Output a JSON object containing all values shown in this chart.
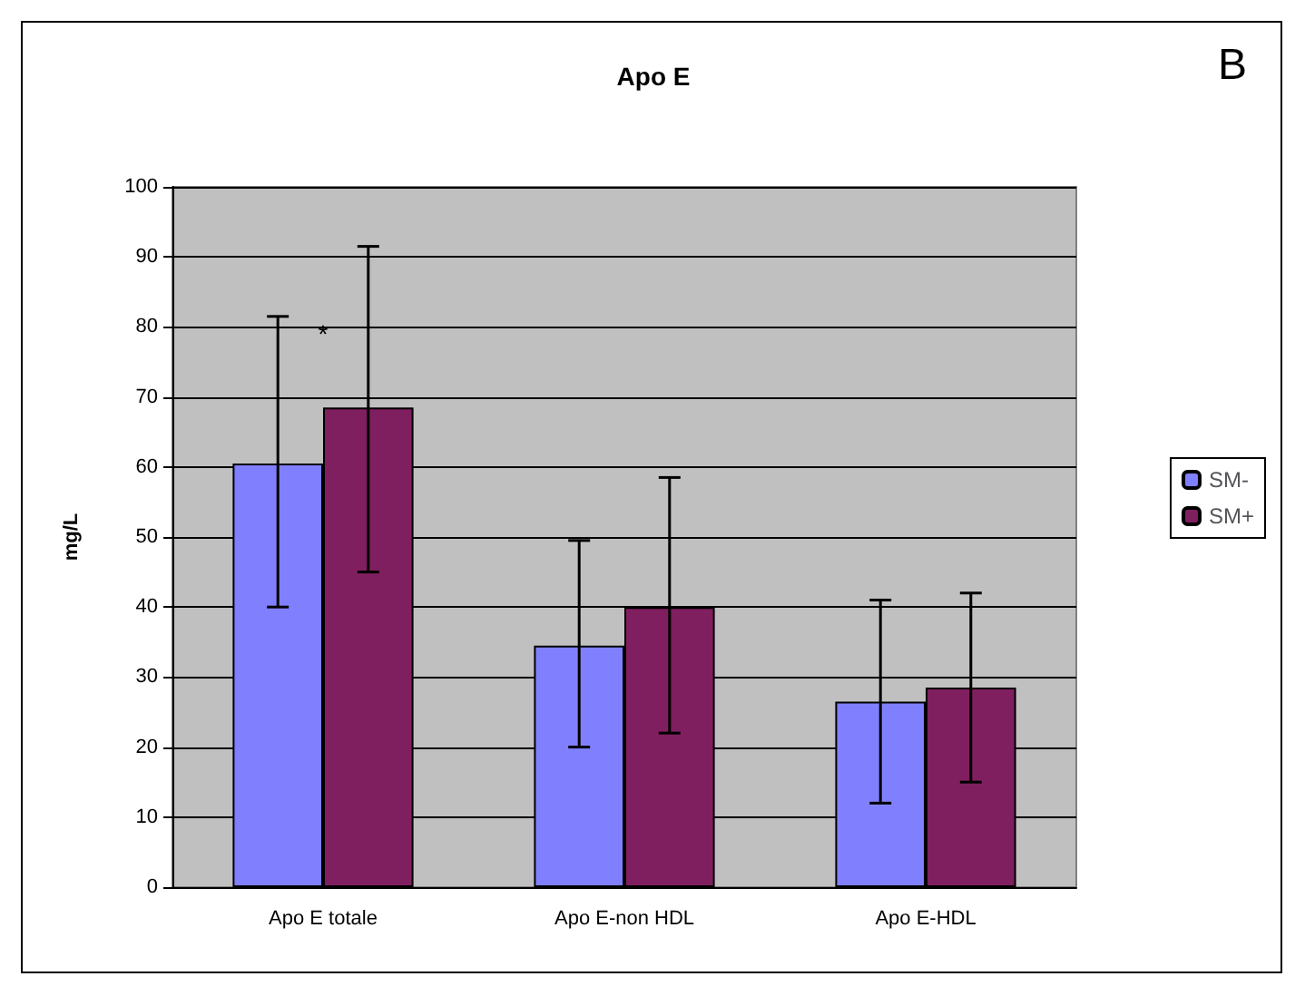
{
  "chart_data": {
    "type": "bar",
    "title": "Apo E",
    "ylabel": "mg/L",
    "categories": [
      "Apo E totale",
      "Apo E-non HDL",
      "Apo E-HDL"
    ],
    "series": [
      {
        "name": "SM-",
        "color": "#8080ff",
        "values": [
          60.5,
          34.5,
          26.5
        ],
        "errors": [
          [
            40,
            81.5
          ],
          [
            20,
            49.5
          ],
          [
            12,
            41
          ]
        ]
      },
      {
        "name": "SM+",
        "color": "#7f1f5f",
        "values": [
          68.5,
          40,
          28.5
        ],
        "errors": [
          [
            45,
            91.5
          ],
          [
            22,
            58.5
          ],
          [
            15,
            42
          ]
        ]
      }
    ],
    "ylim": [
      0,
      100
    ],
    "yticks": [
      0,
      10,
      20,
      30,
      40,
      50,
      60,
      70,
      80,
      90,
      100
    ],
    "grid": "y",
    "legend": "right",
    "annotations": [
      "*",
      "B"
    ]
  }
}
